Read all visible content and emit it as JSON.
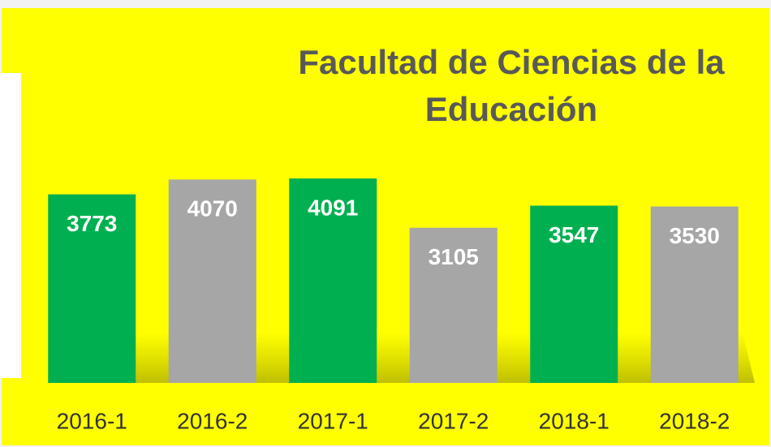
{
  "chart_data": {
    "type": "bar",
    "title": "Facultad de Ciencias de la Educación",
    "categories": [
      "2016-1",
      "2016-2",
      "2017-1",
      "2017-2",
      "2018-1",
      "2018-2"
    ],
    "values": [
      3773,
      4070,
      4091,
      3105,
      3547,
      3530
    ],
    "colors": [
      "#00b050",
      "#a6a6a6",
      "#00b050",
      "#a6a6a6",
      "#00b050",
      "#a6a6a6"
    ],
    "ylim": [
      0,
      5000
    ]
  }
}
